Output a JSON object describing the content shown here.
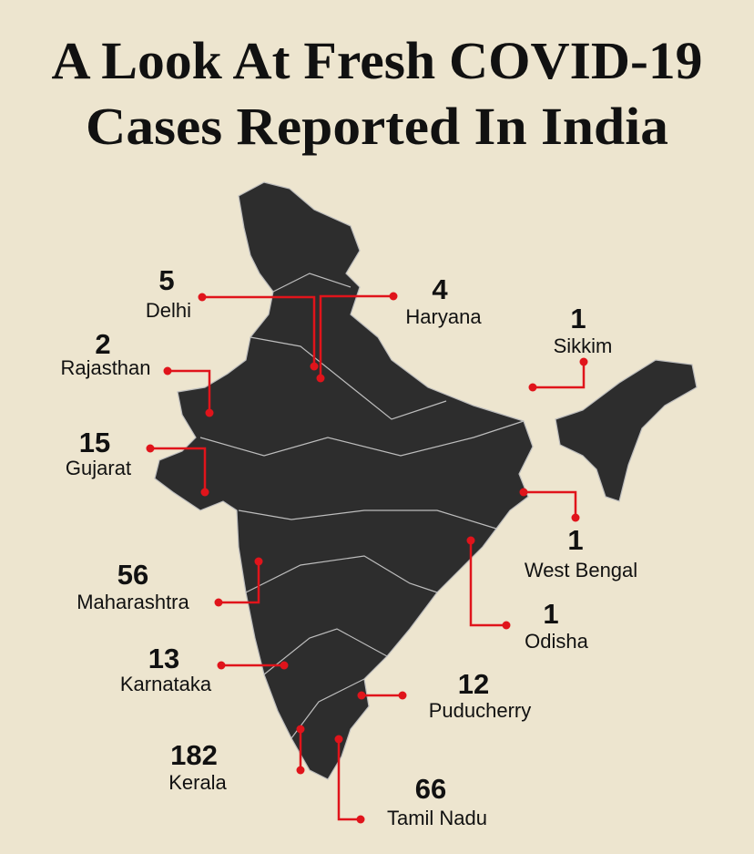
{
  "title": [
    "A Look At Fresh COVID-19",
    "Cases Reported In India"
  ],
  "states": [
    {
      "count": 5,
      "name": "Delhi"
    },
    {
      "count": 4,
      "name": "Haryana"
    },
    {
      "count": 1,
      "name": "Sikkim"
    },
    {
      "count": 2,
      "name": "Rajasthan"
    },
    {
      "count": 15,
      "name": "Gujarat"
    },
    {
      "count": 1,
      "name": "West Bengal"
    },
    {
      "count": 56,
      "name": "Maharashtra"
    },
    {
      "count": 1,
      "name": "Odisha"
    },
    {
      "count": 13,
      "name": "Karnataka"
    },
    {
      "count": 12,
      "name": "Puducherry"
    },
    {
      "count": 182,
      "name": "Kerala"
    },
    {
      "count": 66,
      "name": "Tamil Nadu"
    }
  ]
}
